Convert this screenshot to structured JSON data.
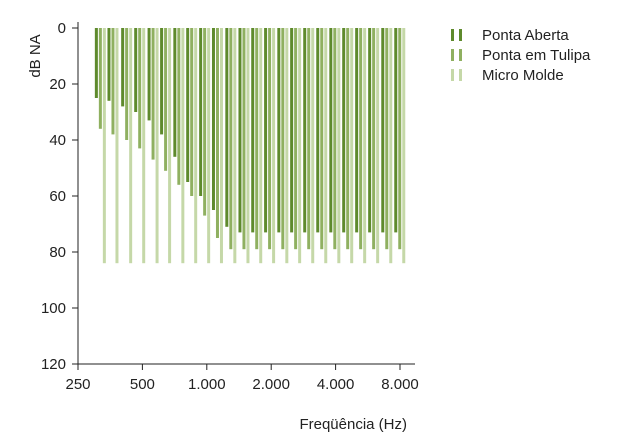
{
  "chart_data": {
    "type": "bar",
    "ylabel": "dB NA",
    "xlabel": "Freqüência (Hz)",
    "y_inverted": true,
    "ylim": [
      0,
      120
    ],
    "y_ticks": [
      0,
      20,
      40,
      60,
      80,
      100,
      120
    ],
    "x_scale": "log",
    "xlim": [
      250,
      8000
    ],
    "x_ticks": [
      250,
      500,
      1000,
      2000,
      4000,
      8000
    ],
    "x_tick_labels": [
      "250",
      "500",
      "1.000",
      "2.000",
      "4.000",
      "8.000"
    ],
    "legend_position": "top-right",
    "categories": [
      275,
      315,
      365,
      420,
      485,
      555,
      640,
      735,
      845,
      970,
      1120,
      1290,
      1480,
      1700,
      1960,
      2250,
      2590,
      2980,
      3430,
      3940,
      4530,
      5210,
      6000,
      6900
    ],
    "series": [
      {
        "name": "Ponta Aberta",
        "color": "#5e8a2c",
        "values": [
          25,
          26,
          28,
          30,
          33,
          38,
          46,
          55,
          60,
          65,
          71,
          73,
          73,
          73,
          73,
          73,
          73,
          73,
          73,
          73,
          73,
          73,
          73,
          73
        ]
      },
      {
        "name": "Ponta em Tulipa",
        "color": "#8fb060",
        "values": [
          36,
          38,
          40,
          43,
          47,
          51,
          56,
          60,
          67,
          75,
          79,
          79,
          79,
          79,
          79,
          79,
          79,
          79,
          79,
          79,
          79,
          79,
          79,
          79
        ]
      },
      {
        "name": "Micro Molde",
        "color": "#c5d8a8",
        "values": [
          84,
          84,
          84,
          84,
          84,
          84,
          84,
          84,
          84,
          84,
          84,
          84,
          84,
          84,
          84,
          84,
          84,
          84,
          84,
          84,
          84,
          84,
          84,
          84
        ]
      }
    ]
  }
}
